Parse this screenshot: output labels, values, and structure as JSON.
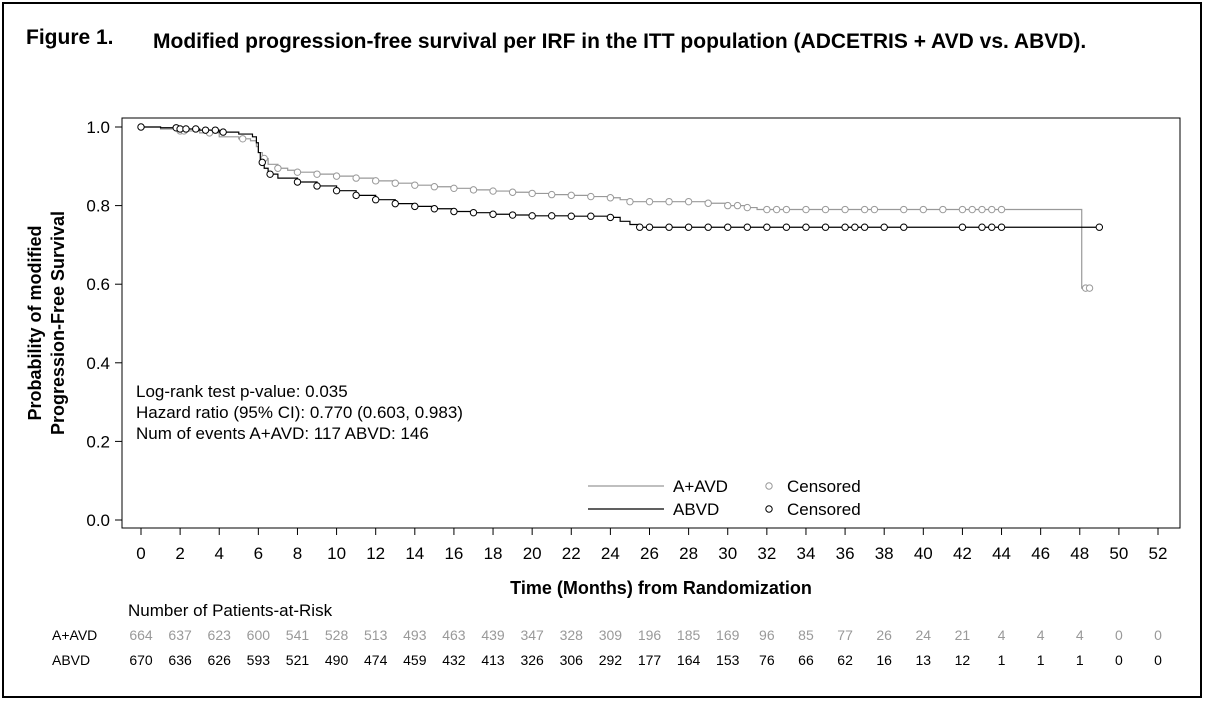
{
  "figure": {
    "label": "Figure 1.",
    "title": "Modified progression-free survival per IRF in the ITT population (ADCETRIS + AVD vs. ABVD)."
  },
  "chart_data": {
    "type": "line",
    "title": "",
    "xlabel": "Time (Months) from Randomization",
    "ylabel_lines": [
      "Probability of modified",
      "Progression-Free Survival"
    ],
    "xlim": [
      0,
      52
    ],
    "ylim": [
      0.0,
      1.0
    ],
    "x_ticks": [
      0,
      2,
      4,
      6,
      8,
      10,
      12,
      14,
      16,
      18,
      20,
      22,
      24,
      26,
      28,
      30,
      32,
      34,
      36,
      38,
      40,
      42,
      44,
      46,
      48,
      50,
      52
    ],
    "y_ticks": [
      {
        "value": 0.0,
        "label": "0.0"
      },
      {
        "value": 0.2,
        "label": "0.2"
      },
      {
        "value": 0.4,
        "label": "0.4"
      },
      {
        "value": 0.6,
        "label": "0.6"
      },
      {
        "value": 0.8,
        "label": "0.8"
      },
      {
        "value": 1.0,
        "label": "1.0"
      }
    ],
    "grid": false,
    "legend_position": "bottom-center",
    "censored_label": "Censored",
    "stats": [
      "Log-rank test p-value: 0.035",
      "Hazard ratio (95% CI): 0.770 (0.603, 0.983)",
      "Num of events  A+AVD: 117  ABVD: 146"
    ],
    "series": [
      {
        "name": "A+AVD",
        "color": "#999999",
        "steps": [
          [
            0,
            1.0
          ],
          [
            1,
            0.995
          ],
          [
            2,
            0.99
          ],
          [
            3,
            0.985
          ],
          [
            4,
            0.975
          ],
          [
            5,
            0.97
          ],
          [
            5.6,
            0.965
          ],
          [
            5.9,
            0.95
          ],
          [
            6.0,
            0.935
          ],
          [
            6.2,
            0.92
          ],
          [
            6.5,
            0.905
          ],
          [
            7,
            0.895
          ],
          [
            7.5,
            0.89
          ],
          [
            8,
            0.885
          ],
          [
            9,
            0.88
          ],
          [
            10,
            0.875
          ],
          [
            11,
            0.87
          ],
          [
            12,
            0.863
          ],
          [
            13,
            0.857
          ],
          [
            14,
            0.852
          ],
          [
            15,
            0.848
          ],
          [
            16,
            0.844
          ],
          [
            17,
            0.84
          ],
          [
            18,
            0.837
          ],
          [
            19,
            0.834
          ],
          [
            20,
            0.831
          ],
          [
            21,
            0.828
          ],
          [
            22,
            0.826
          ],
          [
            23,
            0.823
          ],
          [
            24,
            0.82
          ],
          [
            24.5,
            0.815
          ],
          [
            25,
            0.81
          ],
          [
            28,
            0.81
          ],
          [
            29,
            0.806
          ],
          [
            30,
            0.8
          ],
          [
            31,
            0.795
          ],
          [
            31.5,
            0.79
          ],
          [
            48.1,
            0.79
          ],
          [
            48.1,
            0.59
          ],
          [
            48.5,
            0.59
          ]
        ],
        "censored": [
          2,
          2.2,
          3.5,
          5.2,
          6.3,
          7,
          8,
          9,
          10,
          11,
          12,
          13,
          14,
          15,
          16,
          17,
          18,
          19,
          20,
          21,
          22,
          23,
          24,
          25,
          26,
          27,
          28,
          29,
          30,
          30.5,
          31,
          32,
          32.5,
          33,
          34,
          35,
          36,
          37,
          37.5,
          39,
          40,
          41,
          42,
          42.5,
          43,
          43.5,
          44,
          48.3,
          48.5
        ]
      },
      {
        "name": "ABVD",
        "color": "#000000",
        "steps": [
          [
            0,
            1.0
          ],
          [
            1,
            0.998
          ],
          [
            2,
            0.995
          ],
          [
            3,
            0.992
          ],
          [
            4,
            0.987
          ],
          [
            5,
            0.982
          ],
          [
            5.7,
            0.975
          ],
          [
            5.9,
            0.96
          ],
          [
            6.0,
            0.935
          ],
          [
            6.1,
            0.91
          ],
          [
            6.3,
            0.895
          ],
          [
            6.5,
            0.88
          ],
          [
            7,
            0.87
          ],
          [
            8,
            0.86
          ],
          [
            9,
            0.85
          ],
          [
            10,
            0.838
          ],
          [
            11,
            0.826
          ],
          [
            12,
            0.815
          ],
          [
            13,
            0.805
          ],
          [
            14,
            0.798
          ],
          [
            15,
            0.792
          ],
          [
            16,
            0.785
          ],
          [
            17,
            0.782
          ],
          [
            18,
            0.778
          ],
          [
            19,
            0.776
          ],
          [
            20,
            0.774
          ],
          [
            22,
            0.773
          ],
          [
            24,
            0.77
          ],
          [
            24.5,
            0.76
          ],
          [
            25,
            0.752
          ],
          [
            25.5,
            0.745
          ],
          [
            49,
            0.745
          ]
        ],
        "censored": [
          0,
          1.8,
          2,
          2.3,
          2.8,
          3.3,
          3.8,
          4.2,
          6.2,
          6.6,
          8,
          9,
          10,
          11,
          12,
          13,
          14,
          15,
          16,
          17,
          18,
          19,
          20,
          21,
          22,
          23,
          24,
          25.5,
          26,
          27,
          28,
          29,
          30,
          31,
          32,
          33,
          34,
          35,
          36,
          36.5,
          37,
          38,
          39,
          42,
          43,
          43.5,
          44,
          49
        ]
      }
    ]
  },
  "risk_table": {
    "title": "Number of Patients-at-Risk",
    "rows": [
      {
        "label": "A+AVD",
        "color": "#999999",
        "values": [
          "664",
          "637",
          "623",
          "600",
          "541",
          "528",
          "513",
          "493",
          "463",
          "439",
          "347",
          "328",
          "309",
          "196",
          "185",
          "169",
          "96",
          "85",
          "77",
          "26",
          "24",
          "21",
          "4",
          "4",
          "4",
          "0",
          "0"
        ]
      },
      {
        "label": "ABVD",
        "color": "#000000",
        "values": [
          "670",
          "636",
          "626",
          "593",
          "521",
          "490",
          "474",
          "459",
          "432",
          "413",
          "326",
          "306",
          "292",
          "177",
          "164",
          "153",
          "76",
          "66",
          "62",
          "16",
          "13",
          "12",
          "1",
          "1",
          "1",
          "0",
          "0"
        ]
      }
    ]
  }
}
